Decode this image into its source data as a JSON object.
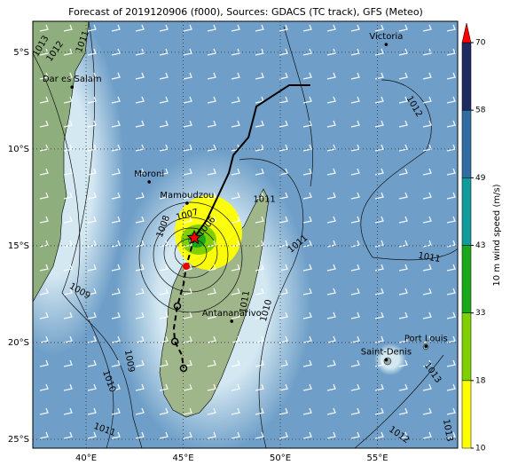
{
  "title": "Forecast of 2019120906 (f000), Sources: GDACS (TC track), GFS (Meteo)",
  "map": {
    "xlim": [
      37.26,
      59.13
    ],
    "ylim": [
      -25.46,
      -3.4
    ],
    "xticks": [
      {
        "value": 40,
        "label": "40°E"
      },
      {
        "value": 45,
        "label": "45°E"
      },
      {
        "value": 50,
        "label": "50°E"
      },
      {
        "value": 55,
        "label": "55°E"
      }
    ],
    "yticks": [
      {
        "value": -5,
        "label": "5°S"
      },
      {
        "value": -10,
        "label": "10°S"
      },
      {
        "value": -15,
        "label": "15°S"
      },
      {
        "value": -20,
        "label": "20°S"
      },
      {
        "value": -25,
        "label": "25°S"
      }
    ],
    "places": [
      {
        "name": "Victoria",
        "lon": 55.45,
        "lat": -4.6
      },
      {
        "name": "Dar es Salam",
        "lon": 39.28,
        "lat": -6.8
      },
      {
        "name": "Moroni",
        "lon": 43.25,
        "lat": -11.7
      },
      {
        "name": "Mamoudzou",
        "lon": 45.2,
        "lat": -12.8
      },
      {
        "name": "Antananarivo",
        "lon": 47.5,
        "lat": -18.9
      },
      {
        "name": "Saint-Denis",
        "lon": 55.45,
        "lat": -20.9
      },
      {
        "name": "Port Louis",
        "lon": 57.5,
        "lat": -20.2
      }
    ],
    "isobar_labels": [
      {
        "value": 1013,
        "lon": 37.67,
        "lat": -4.68
      },
      {
        "value": 1012,
        "lon": 38.4,
        "lat": -4.95
      },
      {
        "value": 1011,
        "lon": 39.82,
        "lat": -4.45
      },
      {
        "value": 1012,
        "lon": 56.9,
        "lat": -7.8
      },
      {
        "value": 1011,
        "lon": 49.18,
        "lat": -12.6
      },
      {
        "value": 1011,
        "lon": 50.9,
        "lat": -14.9
      },
      {
        "value": 1011,
        "lon": 57.67,
        "lat": -15.6
      },
      {
        "value": 1008,
        "lon": 43.97,
        "lat": -14.0
      },
      {
        "value": 1007,
        "lon": 45.2,
        "lat": -13.4
      },
      {
        "value": 1006,
        "lon": 46.2,
        "lat": -14.0
      },
      {
        "value": 1009,
        "lon": 39.68,
        "lat": -17.34
      },
      {
        "value": 1011,
        "lon": 48.17,
        "lat": -17.9
      },
      {
        "value": 1010,
        "lon": 49.27,
        "lat": -18.35
      },
      {
        "value": 1009,
        "lon": 42.24,
        "lat": -20.96
      },
      {
        "value": 1010,
        "lon": 41.19,
        "lat": -22.0
      },
      {
        "value": 1013,
        "lon": 57.85,
        "lat": -21.56
      },
      {
        "value": 1011,
        "lon": 40.96,
        "lat": -24.5
      },
      {
        "value": 1012,
        "lon": 56.12,
        "lat": -24.77
      },
      {
        "value": 1013,
        "lon": 58.63,
        "lat": -24.54
      }
    ],
    "track": {
      "lon": [
        51.55,
        50.46,
        48.77,
        48.36,
        47.58,
        47.35,
        46.71,
        46.21,
        45.57
      ],
      "lat": [
        -6.7,
        -6.7,
        -7.8,
        -9.4,
        -10.32,
        -11.24,
        -12.61,
        -13.67,
        -14.59
      ]
    },
    "forecast_track": {
      "lon": [
        45.57,
        45.16,
        45.02,
        44.7,
        44.52,
        44.57,
        44.93,
        45.02
      ],
      "lat": [
        -14.59,
        -16.06,
        -16.97,
        -18.12,
        -19.27,
        -19.95,
        -20.64,
        -21.33
      ]
    }
  },
  "colorbar": {
    "label": "10 m wind speed (m/s)",
    "ticks": [
      10,
      18,
      33,
      43,
      49,
      58,
      70
    ],
    "colors": [
      "#ffff00",
      "#80d000",
      "#1aa81a",
      "#109c9c",
      "#2f6da3",
      "#1e2b60"
    ],
    "extend_color": "#ff0000"
  }
}
